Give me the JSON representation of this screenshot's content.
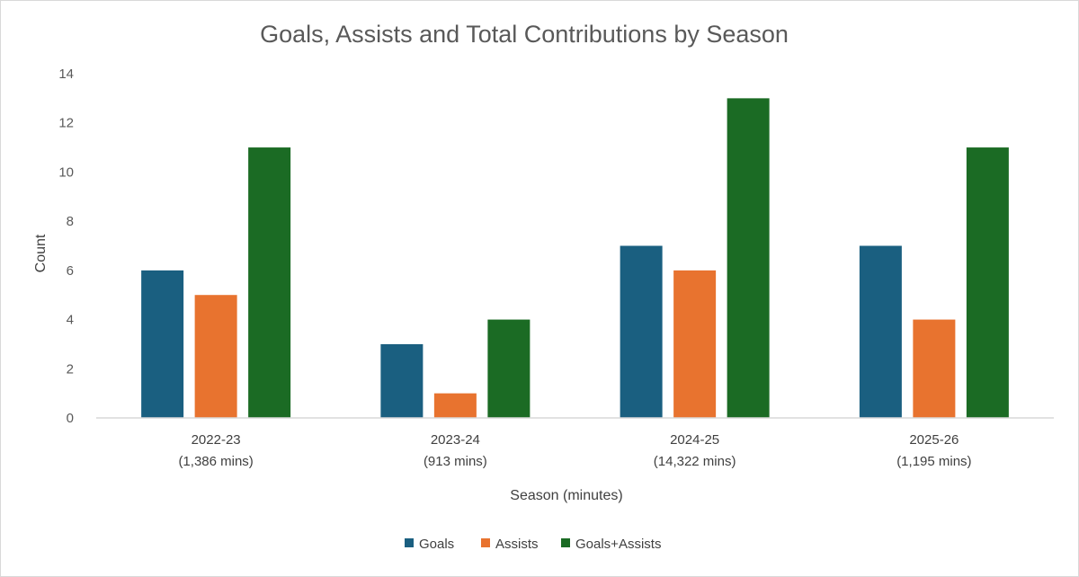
{
  "chart_data": {
    "type": "bar",
    "title": "Goals, Assists and Total Contributions by Season",
    "xlabel": "Season (minutes)",
    "ylabel": "Count",
    "ylim": [
      0,
      14
    ],
    "yticks": [
      0,
      2,
      4,
      6,
      8,
      10,
      12,
      14
    ],
    "grid": false,
    "legend_position": "bottom",
    "categories": [
      {
        "season": "2022-23",
        "minutes": "(1,386 mins)"
      },
      {
        "season": "2023-24",
        "minutes": "(913 mins)"
      },
      {
        "season": "2024-25",
        "minutes": "(14,322 mins)"
      },
      {
        "season": "2025-26",
        "minutes": "(1,195 mins)"
      }
    ],
    "series": [
      {
        "name": "Goals",
        "color": "#1a5f80",
        "values": [
          6,
          3,
          7,
          7
        ]
      },
      {
        "name": "Assists",
        "color": "#e8732f",
        "values": [
          5,
          1,
          6,
          4
        ]
      },
      {
        "name": "Goals+Assists",
        "color": "#1b6b24",
        "values": [
          11,
          4,
          13,
          11
        ]
      }
    ]
  }
}
